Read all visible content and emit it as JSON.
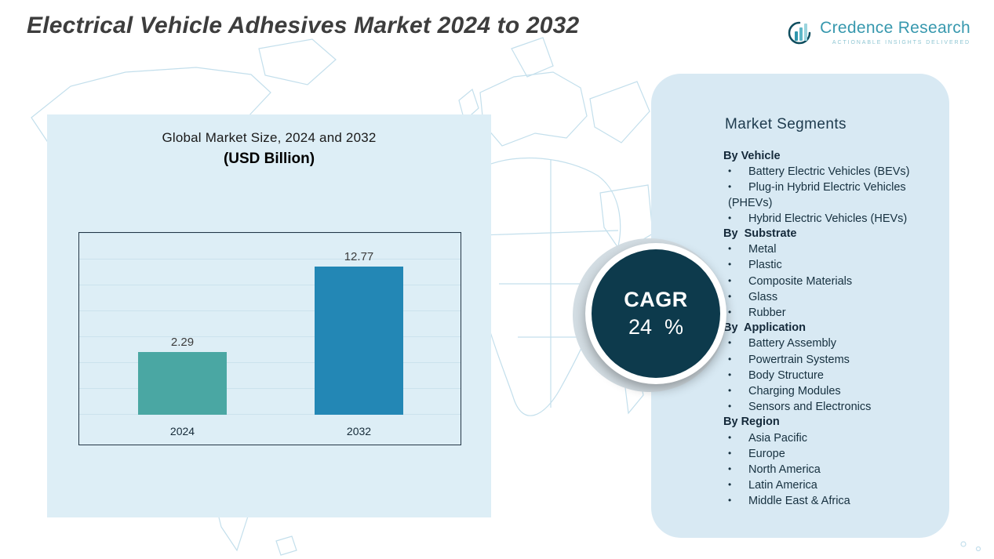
{
  "header": {
    "title": "Electrical Vehicle Adhesives Market 2024 to 2032"
  },
  "logo": {
    "name": "Credence Research",
    "tagline": "Actionable Insights Delivered"
  },
  "chart_data": {
    "type": "bar",
    "title": "Global Market Size, 2024 and 2032",
    "subtitle": "(USD Billion)",
    "categories": [
      "2024",
      "2032"
    ],
    "values": [
      2.29,
      12.77
    ],
    "unit": "USD Billion",
    "bar_colors": [
      "#4aa7a3",
      "#2387b5"
    ],
    "ylim": [
      0,
      14
    ],
    "grid": true,
    "legend": false
  },
  "cagr": {
    "label": "CAGR",
    "value": "24",
    "unit": "%"
  },
  "segments": {
    "heading": "Market Segments",
    "groups": [
      {
        "label": "By Vehicle",
        "items": [
          "Battery Electric Vehicles (BEVs)",
          "Plug-in Hybrid Electric Vehicles (PHEVs)",
          "Hybrid Electric Vehicles (HEVs)"
        ]
      },
      {
        "label": "By  Substrate",
        "items": [
          "Metal",
          "Plastic",
          "Composite Materials",
          "Glass",
          "Rubber"
        ]
      },
      {
        "label": "By  Application",
        "items": [
          "Battery Assembly",
          "Powertrain Systems",
          "Body Structure",
          "Charging Modules",
          "Sensors and Electronics"
        ]
      },
      {
        "label": "By Region",
        "items": [
          "Asia Pacific",
          "Europe",
          "North America",
          "Latin America",
          "Middle East & Africa"
        ]
      }
    ]
  },
  "colors": {
    "left_panel": "#ddeef6",
    "right_panel": "#d8e9f3",
    "bar_2024": "#4aa7a3",
    "bar_2032": "#2387b5",
    "cagr_circle": "#0d3a4c",
    "map_line": "#c3dfec",
    "logo_teal": "#3798ae",
    "text_dark": "#16303f"
  }
}
